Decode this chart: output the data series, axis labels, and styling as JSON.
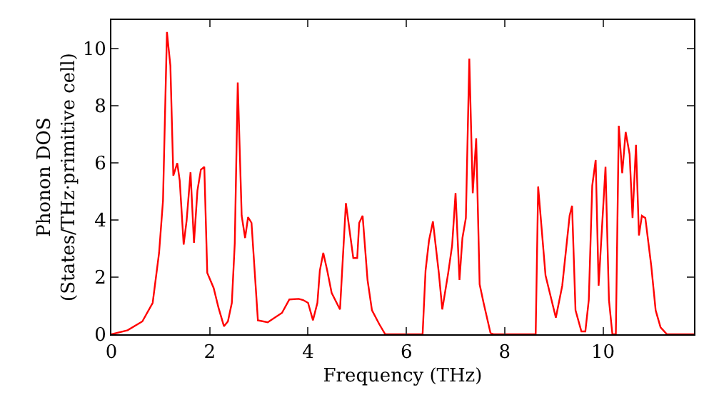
{
  "chart_data": {
    "type": "line",
    "xlabel": "Frequency (THz)",
    "ylabel": "Phonon DOS\n(States/THz·primitive cell)",
    "xlim": [
      0,
      11.85
    ],
    "ylim": [
      0,
      11
    ],
    "xticks": [
      0,
      2,
      4,
      6,
      8,
      10
    ],
    "yticks": [
      0,
      2,
      4,
      6,
      8,
      10
    ],
    "grid": false,
    "marker": "none",
    "line_style": "solid",
    "series": [
      {
        "color": "#ff0000",
        "x": [
          0,
          0.33,
          0.63,
          0.84,
          0.97,
          1.05,
          1.13,
          1.2,
          1.26,
          1.34,
          1.39,
          1.47,
          1.53,
          1.61,
          1.68,
          1.75,
          1.82,
          1.89,
          1.95,
          2.08,
          2.18,
          2.29,
          2.37,
          2.45,
          2.51,
          2.57,
          2.65,
          2.72,
          2.78,
          2.85,
          2.98,
          3.18,
          3.47,
          3.62,
          3.81,
          3.9,
          4.0,
          4.1,
          4.19,
          4.24,
          4.31,
          4.39,
          4.48,
          4.65,
          4.77,
          4.92,
          5.0,
          5.04,
          5.11,
          5.21,
          5.3,
          5.45,
          5.57,
          6.33,
          6.39,
          6.46,
          6.54,
          6.66,
          6.73,
          6.85,
          6.93,
          7.0,
          7.08,
          7.14,
          7.21,
          7.28,
          7.35,
          7.42,
          7.49,
          7.57,
          7.71,
          7.77,
          8.63,
          8.68,
          8.83,
          9.04,
          9.17,
          9.32,
          9.37,
          9.44,
          9.56,
          9.64,
          9.71,
          9.78,
          9.85,
          9.91,
          10.05,
          10.12,
          10.19,
          10.26,
          10.32,
          10.39,
          10.46,
          10.54,
          10.6,
          10.67,
          10.73,
          10.79,
          10.86,
          10.98,
          11.07,
          11.17,
          11.3,
          11.85
        ],
        "values": [
          0,
          0.14,
          0.45,
          1.1,
          2.85,
          4.68,
          10.58,
          9.4,
          5.55,
          5.99,
          5.38,
          3.14,
          3.98,
          5.67,
          3.2,
          5.03,
          5.76,
          5.86,
          2.15,
          1.62,
          0.92,
          0.28,
          0.45,
          1.1,
          3.2,
          8.81,
          4.15,
          3.37,
          4.1,
          3.9,
          0.49,
          0.42,
          0.75,
          1.22,
          1.24,
          1.2,
          1.1,
          0.49,
          1.1,
          2.23,
          2.85,
          2.23,
          1.45,
          0.87,
          4.59,
          2.67,
          2.67,
          3.9,
          4.15,
          1.9,
          0.84,
          0.35,
          0,
          0,
          2.23,
          3.28,
          3.95,
          2.14,
          0.87,
          2.14,
          3.1,
          4.94,
          1.9,
          3.37,
          4.07,
          9.65,
          4.94,
          6.86,
          1.75,
          1.1,
          0.05,
          0,
          0,
          5.17,
          2.06,
          0.58,
          1.7,
          4.15,
          4.5,
          0.84,
          0.1,
          0.1,
          1.2,
          5.2,
          6.1,
          1.7,
          5.86,
          1.2,
          0,
          0,
          7.3,
          5.64,
          7.08,
          6.3,
          4.07,
          6.63,
          3.46,
          4.15,
          4.07,
          2.4,
          0.84,
          0.24,
          0,
          0
        ]
      }
    ]
  }
}
